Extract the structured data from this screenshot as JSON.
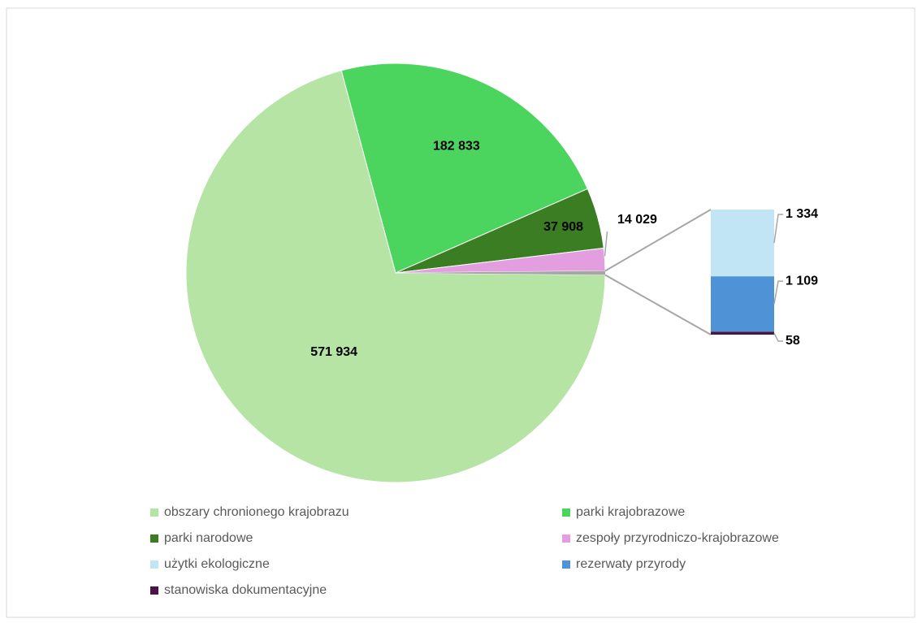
{
  "chart_data": {
    "type": "bar-of-pie",
    "categories": [
      "obszary chronionego krajobrazu",
      "parki krajobrazowe",
      "parki narodowe",
      "zespoły przyrodniczo-krajobrazowe",
      "użytki ekologiczne",
      "rezerwaty przyrody",
      "stanowiska dokumentacyjne"
    ],
    "values": [
      571934,
      182833,
      37908,
      14029,
      1334,
      1109,
      58
    ],
    "value_labels": [
      "571 934",
      "182 833",
      "37 908",
      "14 029",
      "1 334",
      "1 109",
      "58"
    ],
    "colors": [
      "#b5e4a5",
      "#4cd55e",
      "#3a7d22",
      "#e39ee0",
      "#c2e5f5",
      "#4f93d6",
      "#4b1447"
    ],
    "secondary_points": 3,
    "legend": "bottom"
  }
}
